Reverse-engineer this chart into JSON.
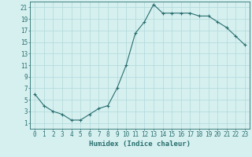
{
  "x": [
    0,
    1,
    2,
    3,
    4,
    5,
    6,
    7,
    8,
    9,
    10,
    11,
    12,
    13,
    14,
    15,
    16,
    17,
    18,
    19,
    20,
    21,
    22,
    23
  ],
  "y": [
    6,
    4,
    3,
    2.5,
    1.5,
    1.5,
    2.5,
    3.5,
    4,
    7,
    11,
    16.5,
    18.5,
    21.5,
    20,
    20,
    20,
    20,
    19.5,
    19.5,
    18.5,
    17.5,
    16,
    14.5
  ],
  "line_color": "#2a6e6e",
  "marker": "+",
  "marker_size": 3.5,
  "marker_lw": 0.8,
  "line_width": 0.8,
  "bg_color": "#d6f0f0",
  "grid_color": "#b0d8d8",
  "xlabel": "Humidex (Indice chaleur)",
  "xlim": [
    -0.5,
    23.5
  ],
  "ylim": [
    0,
    22
  ],
  "yticks": [
    1,
    3,
    5,
    7,
    9,
    11,
    13,
    15,
    17,
    19,
    21
  ],
  "xticks": [
    0,
    1,
    2,
    3,
    4,
    5,
    6,
    7,
    8,
    9,
    10,
    11,
    12,
    13,
    14,
    15,
    16,
    17,
    18,
    19,
    20,
    21,
    22,
    23
  ],
  "tick_fontsize": 5.5,
  "label_fontsize": 6.5
}
